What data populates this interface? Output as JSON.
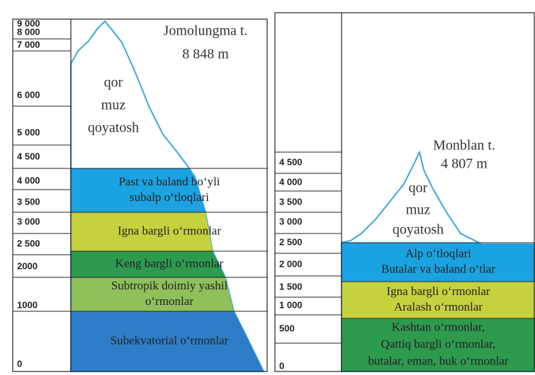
{
  "left": {
    "scale": [
      "9 000",
      "8 000",
      "7 000",
      "6 000",
      "5 000",
      "4 500",
      "4 000",
      "3 500",
      "3 000",
      "2 500",
      "2000",
      "1000",
      "0"
    ],
    "peak": {
      "name": "Jomolungma t.",
      "height": "8 848 m"
    },
    "summit_words": [
      "qor",
      "muz",
      "qoyatosh"
    ],
    "zones": [
      {
        "lines": [
          "Past va baland bo‘yli",
          "subalp o‘tloqlari"
        ]
      },
      {
        "lines": [
          "Igna bargli o‘rmonlar"
        ]
      },
      {
        "lines": [
          "Keng bargli o‘rmonlar"
        ]
      },
      {
        "lines": [
          "Subtropik doimiy yashil",
          "o‘rmonlar"
        ]
      },
      {
        "lines": [
          "Subekvatorial o‘rmonlar"
        ]
      }
    ]
  },
  "right": {
    "scale": [
      "4 500",
      "4 000",
      "3 500",
      "3 000",
      "2 500",
      "2 000",
      "1 500",
      "1 000",
      "500",
      "0"
    ],
    "peak": {
      "name": "Monblan t.",
      "height": "4 807 m"
    },
    "summit_words": [
      "qor",
      "muz",
      "qoyatosh"
    ],
    "zones": [
      {
        "lines": [
          "Alp o‘tloqlari",
          "Butalar va baland o‘tlar"
        ]
      },
      {
        "lines": [
          "Igna bargli o‘rmonlar",
          "Aralash o‘rmonlar"
        ]
      },
      {
        "lines": [
          "Kashtan o‘rmonlar,",
          "Qattiq bargli o‘rmonlar,",
          "butalar, eman, buk o‘rmonlar"
        ]
      }
    ]
  }
}
